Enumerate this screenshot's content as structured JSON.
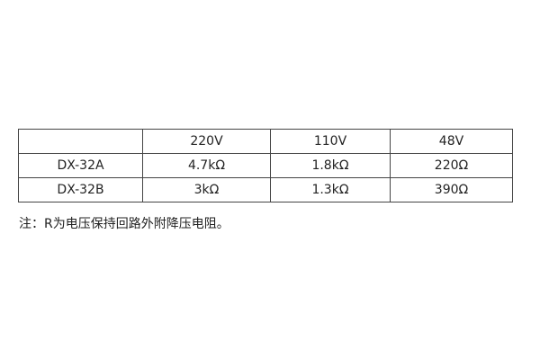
{
  "table": {
    "headers": [
      "",
      "220V",
      "110V",
      "48V"
    ],
    "rows": [
      [
        "DX-32A",
        "4.7kΩ",
        "1.8kΩ",
        "220Ω"
      ],
      [
        "DX-32B",
        "3kΩ",
        "1.3kΩ",
        "390Ω"
      ]
    ]
  },
  "note": "注：R为电压保持回路外附降压电阻。"
}
